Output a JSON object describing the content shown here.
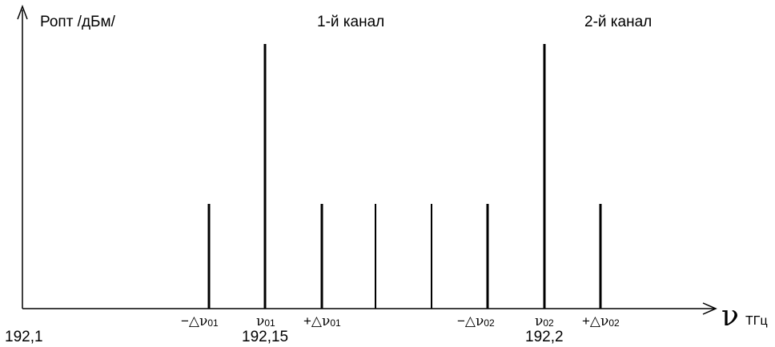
{
  "y_axis_label": "Ропт /дБм/",
  "channel_labels": [
    "1-й канал",
    "2-й канал"
  ],
  "x_axis": {
    "symbol": "ν",
    "unit": "ТГц",
    "freq_labels": [
      "192,1",
      "192,15",
      "192,2"
    ]
  },
  "tick_labels": {
    "minus_dv01": {
      "sign": "−△",
      "nu": "ν",
      "sub": "01"
    },
    "v01": {
      "sign": "",
      "nu": "ν",
      "sub": "01"
    },
    "plus_dv01": {
      "sign": "+△",
      "nu": "ν",
      "sub": "01"
    },
    "minus_dv02": {
      "sign": "−△",
      "nu": "ν",
      "sub": "02"
    },
    "v02": {
      "sign": "",
      "nu": "ν",
      "sub": "02"
    },
    "plus_dv02": {
      "sign": "+△",
      "nu": "ν",
      "sub": "02"
    }
  },
  "spectral_lines": [
    {
      "id": "minus-dv01",
      "level": "low"
    },
    {
      "id": "v01",
      "level": "high"
    },
    {
      "id": "plus-dv01",
      "level": "low"
    },
    {
      "id": "intermediate-1",
      "level": "low"
    },
    {
      "id": "intermediate-2",
      "level": "low"
    },
    {
      "id": "minus-dv02",
      "level": "low"
    },
    {
      "id": "v02",
      "level": "high"
    },
    {
      "id": "plus-dv02",
      "level": "low"
    }
  ],
  "colors": {
    "ink": "#000000",
    "background": "#ffffff"
  }
}
